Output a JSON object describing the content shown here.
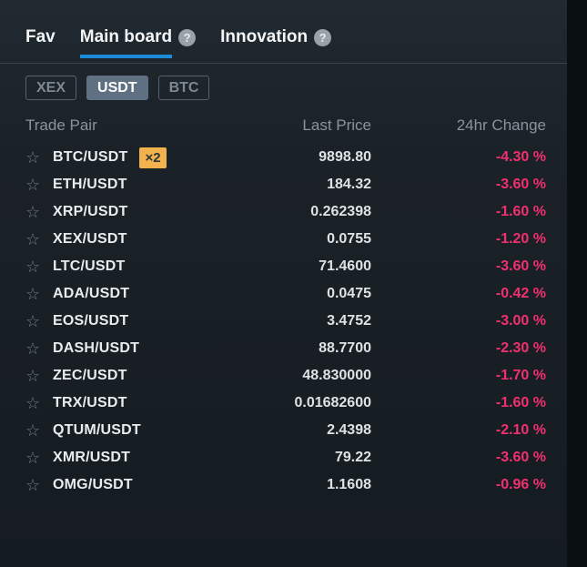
{
  "header": {
    "tabs": [
      {
        "label": "Fav",
        "active": false,
        "help": false
      },
      {
        "label": "Main board",
        "active": true,
        "help": true
      },
      {
        "label": "Innovation",
        "active": false,
        "help": true
      }
    ],
    "help_glyph": "?"
  },
  "filters": {
    "options": [
      {
        "label": "XEX",
        "active": false
      },
      {
        "label": "USDT",
        "active": true
      },
      {
        "label": "BTC",
        "active": false
      }
    ]
  },
  "table": {
    "headers": {
      "pair": "Trade Pair",
      "price": "Last Price",
      "change": "24hr Change"
    },
    "star_glyph": "☆",
    "rows": [
      {
        "pair": "BTC/USDT",
        "badge": "×2",
        "price": "9898.80",
        "change": "-4.30 %"
      },
      {
        "pair": "ETH/USDT",
        "badge": null,
        "price": "184.32",
        "change": "-3.60 %"
      },
      {
        "pair": "XRP/USDT",
        "badge": null,
        "price": "0.262398",
        "change": "-1.60 %"
      },
      {
        "pair": "XEX/USDT",
        "badge": null,
        "price": "0.0755",
        "change": "-1.20 %"
      },
      {
        "pair": "LTC/USDT",
        "badge": null,
        "price": "71.4600",
        "change": "-3.60 %"
      },
      {
        "pair": "ADA/USDT",
        "badge": null,
        "price": "0.0475",
        "change": "-0.42 %"
      },
      {
        "pair": "EOS/USDT",
        "badge": null,
        "price": "3.4752",
        "change": "-3.00 %"
      },
      {
        "pair": "DASH/USDT",
        "badge": null,
        "price": "88.7700",
        "change": "-2.30 %"
      },
      {
        "pair": "ZEC/USDT",
        "badge": null,
        "price": "48.830000",
        "change": "-1.70 %"
      },
      {
        "pair": "TRX/USDT",
        "badge": null,
        "price": "0.01682600",
        "change": "-1.60 %"
      },
      {
        "pair": "QTUM/USDT",
        "badge": null,
        "price": "2.4398",
        "change": "-2.10 %"
      },
      {
        "pair": "XMR/USDT",
        "badge": null,
        "price": "79.22",
        "change": "-3.60 %"
      },
      {
        "pair": "OMG/USDT",
        "badge": null,
        "price": "1.1608",
        "change": "-0.96 %"
      }
    ]
  },
  "colors": {
    "accent-blue": "#1c8cd9",
    "negative-pink": "#f1306f",
    "badge-amber": "#f2b34f",
    "panel-top": "#212a31",
    "panel-bottom": "#151c21",
    "outer": "#0a0f12",
    "filter-active-bg": "#5e7081"
  }
}
